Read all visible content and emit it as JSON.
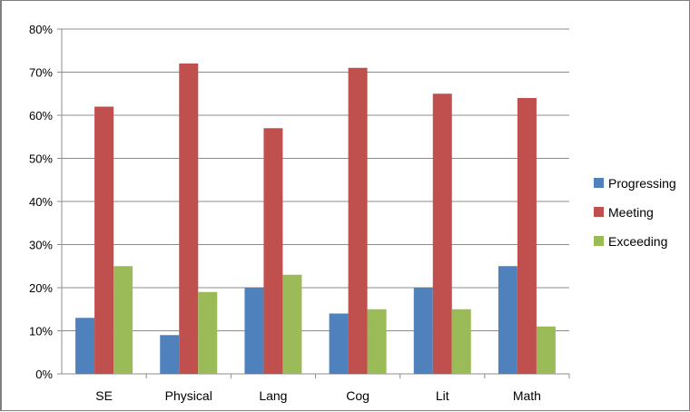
{
  "chart_data": {
    "type": "bar",
    "categories": [
      "SE",
      "Physical",
      "Lang",
      "Cog",
      "Lit",
      "Math"
    ],
    "series": [
      {
        "name": "Progressing",
        "color": "#4f81bd",
        "values": [
          0.13,
          0.09,
          0.2,
          0.14,
          0.2,
          0.25
        ]
      },
      {
        "name": "Meeting",
        "color": "#c0504d",
        "values": [
          0.62,
          0.72,
          0.57,
          0.71,
          0.65,
          0.64
        ]
      },
      {
        "name": "Exceeding",
        "color": "#9bbb59",
        "values": [
          0.25,
          0.19,
          0.23,
          0.15,
          0.15,
          0.11
        ]
      }
    ],
    "ylim": [
      0,
      0.8
    ],
    "yticks": [
      "0%",
      "10%",
      "20%",
      "30%",
      "40%",
      "50%",
      "60%",
      "70%",
      "80%"
    ],
    "grid": true,
    "legend": "right"
  }
}
